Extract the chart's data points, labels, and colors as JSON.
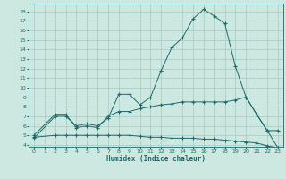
{
  "xlabel": "Humidex (Indice chaleur)",
  "bg_color": "#cce8e0",
  "grid_color": "#aacfc8",
  "line_color": "#1a6b6b",
  "xlim": [
    -0.5,
    23.5
  ],
  "ylim": [
    3.8,
    18.8
  ],
  "xticks": [
    0,
    1,
    2,
    3,
    4,
    5,
    6,
    7,
    8,
    9,
    10,
    11,
    12,
    13,
    14,
    15,
    16,
    17,
    18,
    19,
    20,
    21,
    22,
    23
  ],
  "yticks": [
    4,
    5,
    6,
    7,
    8,
    9,
    10,
    11,
    12,
    13,
    14,
    15,
    16,
    17,
    18
  ],
  "line1_x": [
    0,
    2,
    3,
    4,
    5,
    6,
    7,
    8,
    9,
    10,
    11,
    12,
    13,
    14,
    15,
    16,
    17,
    18,
    19,
    20,
    21,
    22,
    23
  ],
  "line1_y": [
    4.7,
    7.0,
    7.0,
    6.0,
    6.2,
    6.0,
    6.8,
    9.3,
    9.3,
    8.2,
    9.0,
    11.8,
    14.2,
    15.2,
    17.2,
    18.2,
    17.5,
    16.7,
    12.2,
    9.0,
    7.2,
    5.5,
    3.7
  ],
  "line2_x": [
    0,
    2,
    3,
    4,
    5,
    6,
    7,
    8,
    9,
    10,
    11,
    12,
    13,
    14,
    15,
    16,
    17,
    18,
    19,
    20,
    21,
    22,
    23
  ],
  "line2_y": [
    5.0,
    7.2,
    7.2,
    5.8,
    6.0,
    5.8,
    7.0,
    7.5,
    7.5,
    7.8,
    8.0,
    8.2,
    8.3,
    8.5,
    8.5,
    8.5,
    8.5,
    8.5,
    8.7,
    9.0,
    7.2,
    5.5,
    5.5
  ],
  "line3_x": [
    0,
    2,
    3,
    4,
    5,
    6,
    7,
    8,
    9,
    10,
    11,
    12,
    13,
    14,
    15,
    16,
    17,
    18,
    19,
    20,
    21,
    22,
    23
  ],
  "line3_y": [
    4.8,
    5.0,
    5.0,
    5.0,
    5.0,
    5.0,
    5.0,
    5.0,
    5.0,
    4.9,
    4.8,
    4.8,
    4.7,
    4.7,
    4.7,
    4.6,
    4.6,
    4.5,
    4.4,
    4.3,
    4.2,
    3.9,
    3.7
  ]
}
